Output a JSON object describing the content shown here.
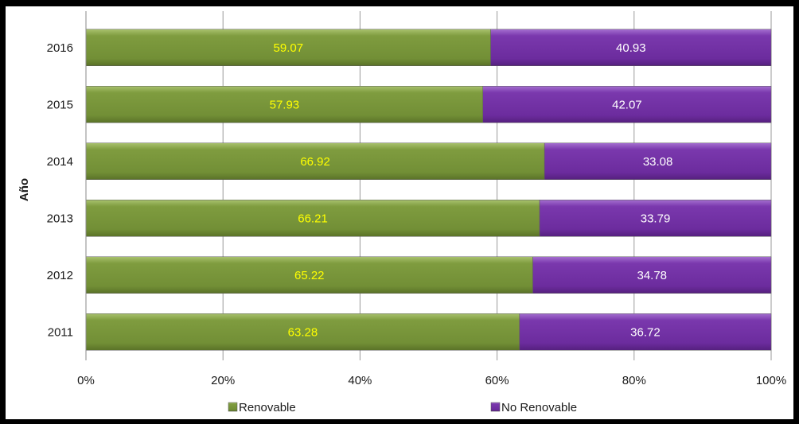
{
  "chart_data": {
    "type": "bar",
    "orientation": "horizontal",
    "stacked": "percent",
    "ylabel": "Año",
    "xlabel": "",
    "title": "",
    "categories": [
      "2016",
      "2015",
      "2014",
      "2013",
      "2012",
      "2011"
    ],
    "series": [
      {
        "name": "Renovable",
        "values": [
          59.07,
          57.93,
          66.92,
          66.21,
          65.22,
          63.28
        ],
        "color": "#77933c",
        "label_color": "#ffff00"
      },
      {
        "name": "No Renovable",
        "values": [
          40.93,
          42.07,
          33.08,
          33.79,
          34.78,
          36.72
        ],
        "color": "#7030a0",
        "label_color": "#ffffff"
      }
    ],
    "xlim": [
      0,
      100
    ],
    "xtick_labels": [
      "0%",
      "20%",
      "40%",
      "60%",
      "80%",
      "100%"
    ],
    "grid": true,
    "legend": "bottom"
  }
}
